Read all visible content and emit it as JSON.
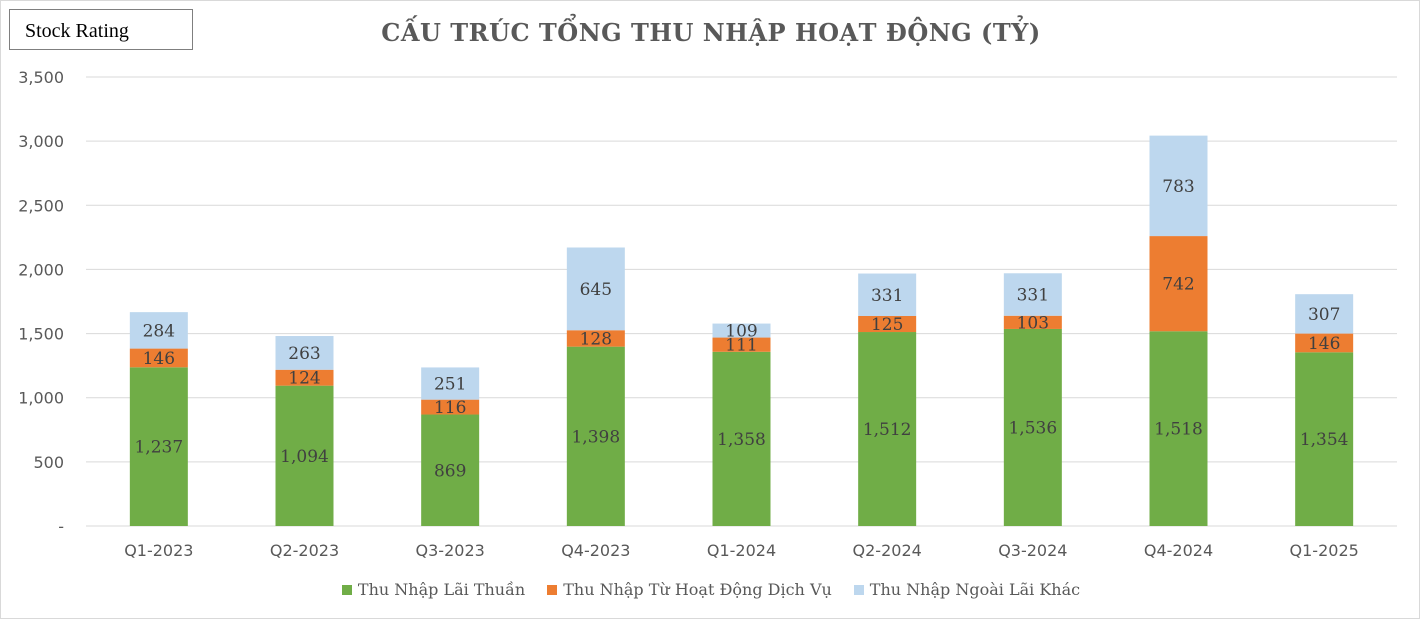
{
  "badge": "Stock Rating",
  "chart_data": {
    "type": "bar",
    "stacked": true,
    "title": "CẤU TRÚC TỔNG THU NHẬP HOẠT ĐỘNG (TỶ)",
    "categories": [
      "Q1-2023",
      "Q2-2023",
      "Q3-2023",
      "Q4-2023",
      "Q1-2024",
      "Q2-2024",
      "Q3-2024",
      "Q4-2024",
      "Q1-2025"
    ],
    "series": [
      {
        "name": "Thu Nhập Lãi Thuần",
        "color": "#70ad47",
        "values": [
          1237,
          1094,
          869,
          1398,
          1358,
          1512,
          1536,
          1518,
          1354
        ],
        "labels": [
          "1,237",
          "1,094",
          "869",
          "1,398",
          "1,358",
          "1,512",
          "1,536",
          "1,518",
          "1,354"
        ]
      },
      {
        "name": "Thu Nhập Từ Hoạt Động Dịch Vụ",
        "color": "#ed7d31",
        "values": [
          146,
          124,
          116,
          128,
          111,
          125,
          103,
          742,
          146
        ],
        "labels": [
          "146",
          "124",
          "116",
          "128",
          "111",
          "125",
          "103",
          "742",
          "146"
        ]
      },
      {
        "name": "Thu Nhập Ngoài Lãi Khác",
        "color": "#bdd7ee",
        "values": [
          284,
          263,
          251,
          645,
          109,
          331,
          331,
          783,
          307
        ],
        "labels": [
          "284",
          "263",
          "251",
          "645",
          "109",
          "331",
          "331",
          "783",
          "307"
        ]
      }
    ],
    "yticks": [
      0,
      500,
      1000,
      1500,
      2000,
      2500,
      3000,
      3500
    ],
    "ytick_labels": [
      "-",
      "500",
      "1,000",
      "1,500",
      "2,000",
      "2,500",
      "3,000",
      "3,500"
    ],
    "ylim": [
      0,
      3500
    ],
    "grid": true,
    "legend_position": "bottom"
  }
}
